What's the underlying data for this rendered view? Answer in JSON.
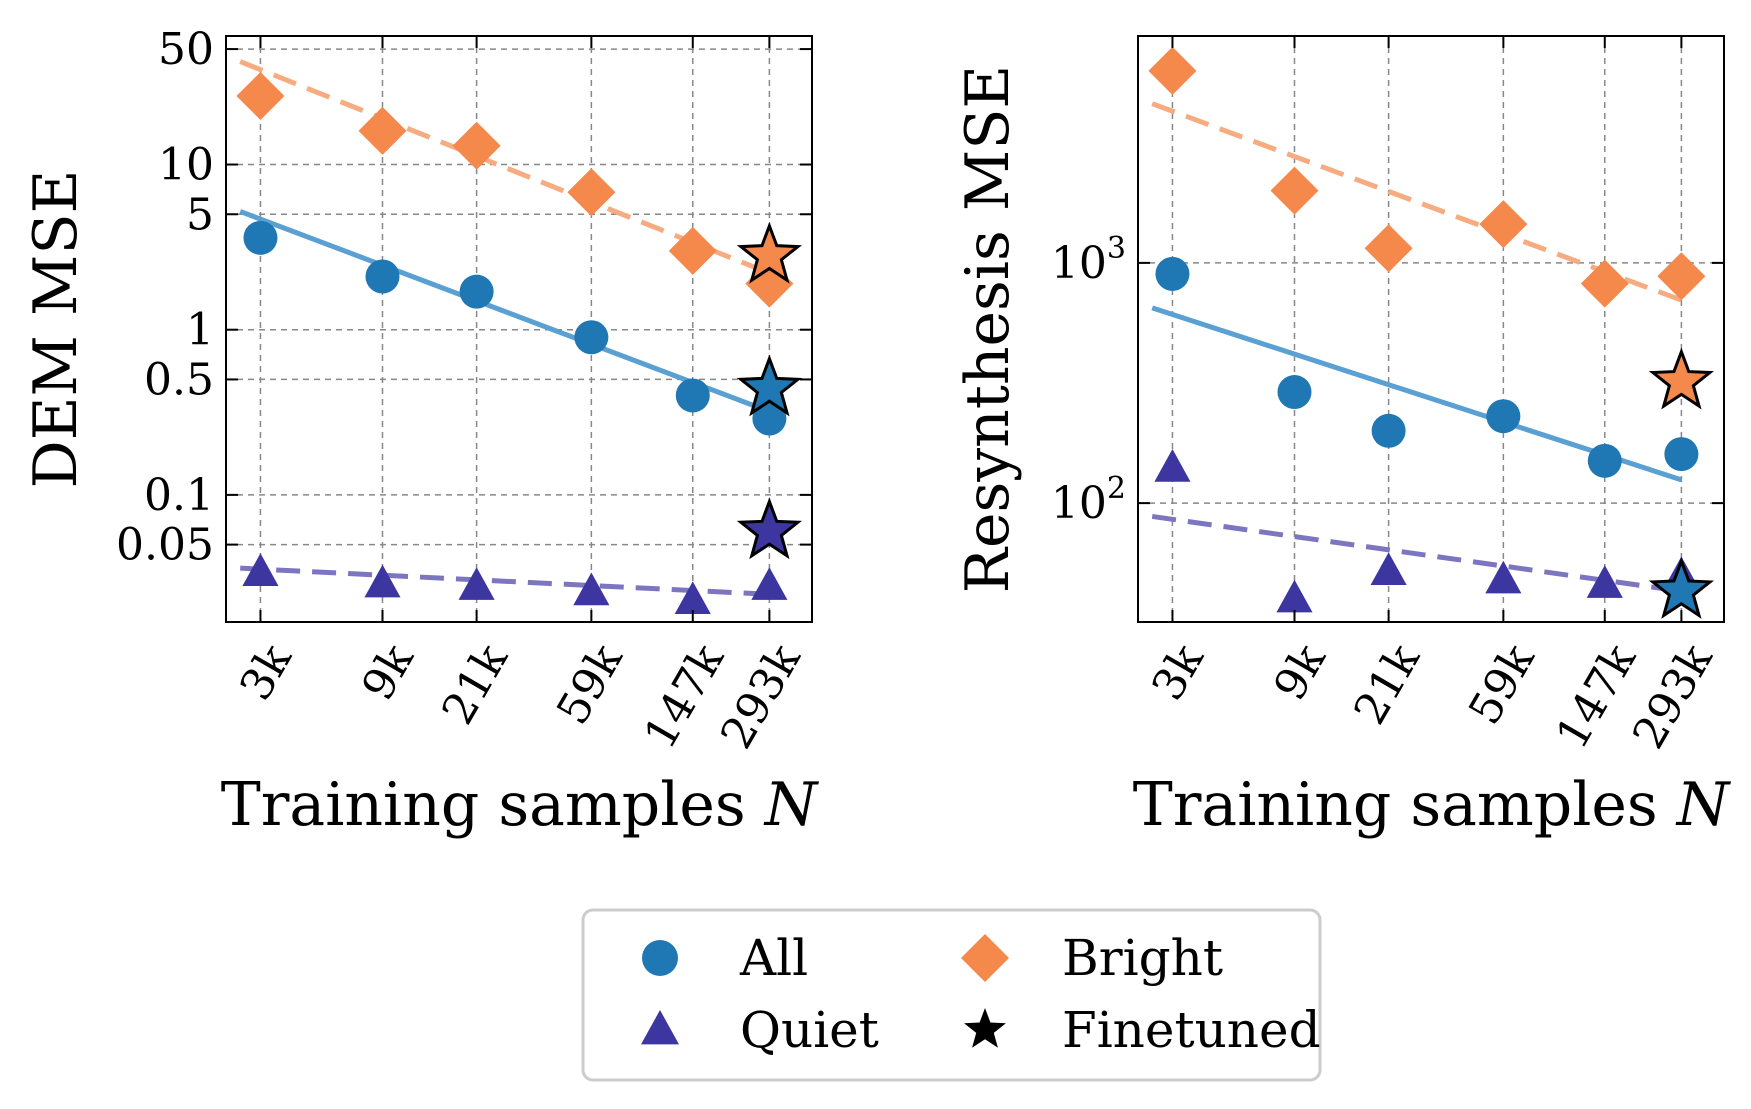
{
  "chart_data": [
    {
      "type": "scatter",
      "xlabel": "Training samples N",
      "ylabel": "DEM MSE",
      "xscale": "log",
      "yscale": "log",
      "xlim": [
        2200,
        430000
      ],
      "ylim": [
        0.017,
        60
      ],
      "grid": true,
      "x": [
        3000,
        9000,
        21000,
        59000,
        147000,
        293000
      ],
      "xtick_labels": [
        "3k",
        "9k",
        "21k",
        "59k",
        "147k",
        "293k"
      ],
      "yticks": [
        50,
        10,
        5,
        1,
        0.5,
        0.1,
        0.05
      ],
      "ytick_labels": [
        "50",
        "10",
        "5",
        "1",
        "0.5",
        "0.1",
        "0.05"
      ],
      "series": [
        {
          "name": "All",
          "marker": "circle",
          "color": "#1f77b4",
          "values": [
            3.6,
            2.1,
            1.7,
            0.9,
            0.4,
            0.29
          ]
        },
        {
          "name": "Bright",
          "marker": "diamond",
          "color": "#f4894b",
          "values": [
            26,
            16,
            13,
            6.8,
            3.0,
            1.9
          ]
        },
        {
          "name": "Quiet",
          "marker": "triangle",
          "color": "#3d35a0",
          "values": [
            0.034,
            0.029,
            0.028,
            0.026,
            0.023,
            0.028
          ]
        }
      ],
      "finetuned": [
        {
          "series": "Bright",
          "x": 293000,
          "y": 2.8
        },
        {
          "series": "All",
          "x": 293000,
          "y": 0.44
        },
        {
          "series": "Quiet",
          "x": 293000,
          "y": 0.06
        }
      ],
      "fits": [
        {
          "series": "All",
          "style": "solid",
          "x": [
            2500,
            293000
          ],
          "y": [
            5.2,
            0.32
          ]
        },
        {
          "series": "Bright",
          "style": "dashed",
          "x": [
            2500,
            293000
          ],
          "y": [
            42,
            2.2
          ]
        },
        {
          "series": "Quiet",
          "style": "dashed",
          "x": [
            2500,
            293000
          ],
          "y": [
            0.036,
            0.025
          ]
        }
      ]
    },
    {
      "type": "scatter",
      "xlabel": "Training samples N",
      "ylabel": "Resynthesis MSE",
      "xscale": "log",
      "yscale": "log",
      "xlim": [
        2200,
        430000
      ],
      "ylim": [
        32,
        8800
      ],
      "grid": true,
      "x": [
        3000,
        9000,
        21000,
        59000,
        147000,
        293000
      ],
      "xtick_labels": [
        "3k",
        "9k",
        "21k",
        "59k",
        "147k",
        "293k"
      ],
      "yticks": [
        1000,
        100
      ],
      "ytick_labels": [
        {
          "base": "10",
          "exp": "3"
        },
        {
          "base": "10",
          "exp": "2"
        }
      ],
      "series": [
        {
          "name": "All",
          "marker": "circle",
          "color": "#1f77b4",
          "values": [
            900,
            290,
            200,
            230,
            150,
            160
          ]
        },
        {
          "name": "Bright",
          "marker": "diamond",
          "color": "#f4894b",
          "values": [
            6300,
            2000,
            1150,
            1450,
            820,
            880
          ]
        },
        {
          "name": "Quiet",
          "marker": "triangle",
          "color": "#3d35a0",
          "values": [
            140,
            40,
            52,
            48,
            46,
            50
          ]
        }
      ],
      "finetuned": [
        {
          "series": "Bright",
          "x": 293000,
          "y": 320
        },
        {
          "series": "All",
          "x": 293000,
          "y": 43
        }
      ],
      "fits": [
        {
          "series": "All",
          "style": "solid",
          "x": [
            2500,
            293000
          ],
          "y": [
            650,
            125
          ]
        },
        {
          "series": "Bright",
          "style": "dashed",
          "x": [
            2500,
            293000
          ],
          "y": [
            4600,
            700
          ]
        },
        {
          "series": "Quiet",
          "style": "dashed",
          "x": [
            2500,
            293000
          ],
          "y": [
            88,
            43
          ]
        }
      ]
    }
  ],
  "legend": {
    "placement": "bottom-center",
    "items": [
      {
        "label": "All",
        "marker": "circle",
        "color": "#1f77b4"
      },
      {
        "label": "Bright",
        "marker": "diamond",
        "color": "#f4894b"
      },
      {
        "label": "Quiet",
        "marker": "triangle",
        "color": "#3d35a0"
      },
      {
        "label": "Finetuned",
        "marker": "star",
        "color": "#000000"
      }
    ]
  },
  "colors": {
    "All": "#1f77b4",
    "Bright": "#f4894b",
    "Quiet": "#3d35a0",
    "All_fit": "#5aa0d2",
    "Bright_fit": "#f6ab80",
    "Quiet_fit": "#7c75c0",
    "grid": "#888888"
  }
}
